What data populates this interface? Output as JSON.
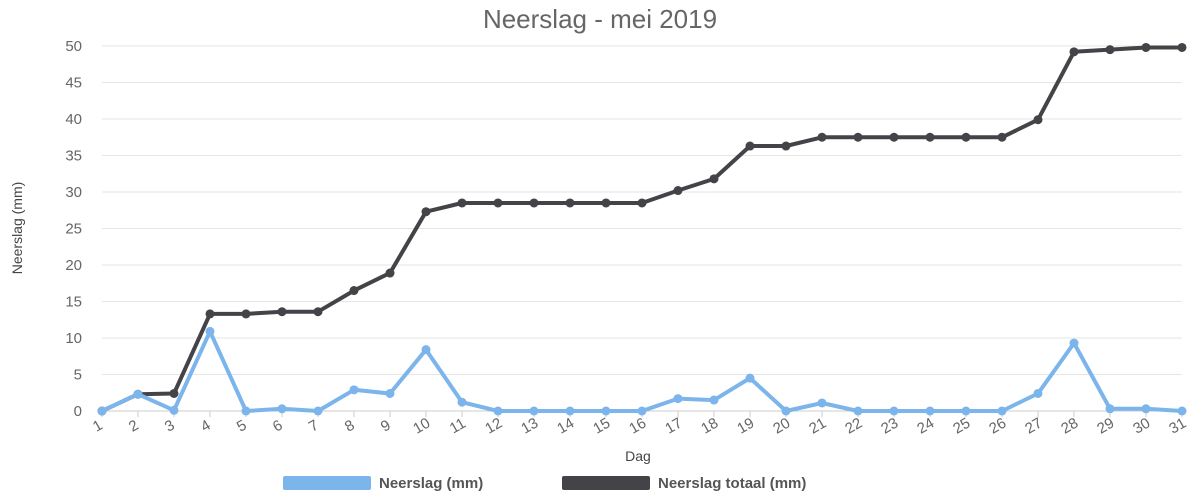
{
  "chart_data": {
    "type": "line",
    "title": "Neerslag - mei 2019",
    "xlabel": "Dag",
    "ylabel": "Neerslag (mm)",
    "ylim": [
      0,
      50
    ],
    "yticks": [
      0,
      5,
      10,
      15,
      20,
      25,
      30,
      35,
      40,
      45,
      50
    ],
    "grid": true,
    "legend_position": "bottom",
    "categories": [
      "1",
      "2",
      "3",
      "4",
      "5",
      "6",
      "7",
      "8",
      "9",
      "10",
      "11",
      "12",
      "13",
      "14",
      "15",
      "16",
      "17",
      "18",
      "19",
      "20",
      "21",
      "22",
      "23",
      "24",
      "25",
      "26",
      "27",
      "28",
      "29",
      "30",
      "31"
    ],
    "series": [
      {
        "name": "Neerslag (mm)",
        "color": "#7cb5ec",
        "values": [
          0,
          2.3,
          0.1,
          10.9,
          0.0,
          0.3,
          0.0,
          2.9,
          2.4,
          8.4,
          1.2,
          0.0,
          0.0,
          0.0,
          0.0,
          0.0,
          1.7,
          1.5,
          4.5,
          0.0,
          1.1,
          0.0,
          0.0,
          0.0,
          0.0,
          0.0,
          2.4,
          9.3,
          0.3,
          0.3,
          0.0
        ]
      },
      {
        "name": "Neerslag totaal (mm)",
        "color": "#434348",
        "values": [
          0,
          2.3,
          2.4,
          13.3,
          13.3,
          13.6,
          13.6,
          16.5,
          18.9,
          27.3,
          28.5,
          28.5,
          28.5,
          28.5,
          28.5,
          28.5,
          30.2,
          31.8,
          36.3,
          36.3,
          37.5,
          37.5,
          37.5,
          37.5,
          37.5,
          37.5,
          39.9,
          49.2,
          49.5,
          49.8,
          49.8
        ]
      }
    ]
  }
}
